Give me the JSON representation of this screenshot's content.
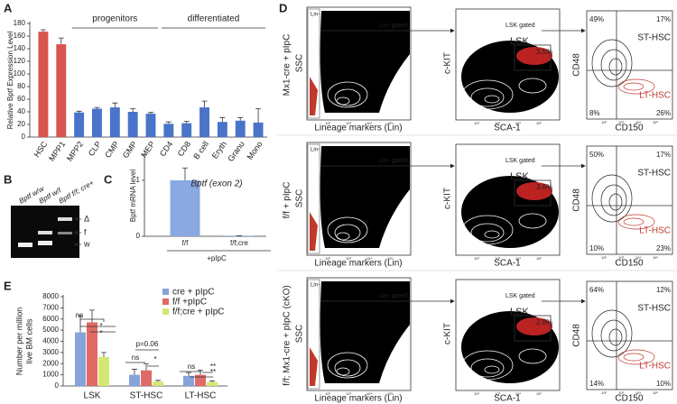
{
  "panel_labels": [
    "A",
    "B",
    "C",
    "D",
    "E"
  ],
  "chart_data": [
    {
      "type": "bar",
      "ylabel": "Relative Bptf Expression Level",
      "categories": [
        "HSC",
        "MPP1",
        "MPP2",
        "CLP",
        "CMP",
        "GMP",
        "MEP",
        "CD4",
        "CD8",
        "B cell",
        "Eryth",
        "Granu",
        "Mono"
      ],
      "values": [
        167,
        147,
        39,
        45,
        47,
        40,
        37,
        21,
        22,
        47,
        24,
        26,
        23
      ],
      "errors": [
        3,
        10,
        2,
        2,
        7,
        5,
        2,
        3,
        3,
        10,
        7,
        5,
        22
      ],
      "colors": [
        "#d9534f",
        "#d9534f",
        "#4a74c9",
        "#4a74c9",
        "#4a74c9",
        "#4a74c9",
        "#4a74c9",
        "#4a74c9",
        "#4a74c9",
        "#4a74c9",
        "#4a74c9",
        "#4a74c9",
        "#4a74c9"
      ],
      "ylim": [
        0,
        180
      ],
      "yticks": [
        0,
        20,
        40,
        60,
        80,
        100,
        120,
        140,
        160,
        180
      ],
      "annotations": [
        "progenitors",
        "differentiated"
      ]
    },
    {
      "type": "bar",
      "title": "Bptf (exon 2)",
      "ylabel": "Bptf mRNA level",
      "xlabel": "+pIpC",
      "categories": [
        "f/f",
        "f/f;cre"
      ],
      "values": [
        1.0,
        0.01
      ],
      "errors": [
        0.22,
        0
      ],
      "colors": [
        "#8aa9e2",
        "#8aa9e2"
      ],
      "ylim": [
        0,
        1.45
      ],
      "yticks": [
        0,
        1
      ]
    },
    {
      "type": "grouped_bar",
      "ylabel": [
        "Number per million",
        "live BM cells"
      ],
      "categories": [
        "LSK",
        "ST-HSC",
        "LT-HSC"
      ],
      "series": [
        {
          "name": "cre + pIpC",
          "color": "#86a3da",
          "values": [
            4800,
            1000,
            900
          ],
          "errors": [
            1500,
            500,
            300
          ]
        },
        {
          "name": "f/f +pIpC",
          "color": "#e06a66",
          "values": [
            5700,
            1400,
            1000
          ],
          "errors": [
            1100,
            600,
            400
          ]
        },
        {
          "name": "f/f;cre + pIpC",
          "color": "#d6e672",
          "values": [
            2600,
            400,
            350
          ],
          "errors": [
            400,
            100,
            100
          ]
        }
      ],
      "ylim": [
        0,
        8000
      ],
      "yticks": [
        0,
        1000,
        2000,
        3000,
        4000,
        5000,
        6000,
        7000,
        8000
      ],
      "legend": "top-right",
      "annotations": [
        "ns",
        "*",
        "*",
        "p=0.06",
        "ns",
        "*",
        "ns",
        "**",
        "**"
      ]
    }
  ],
  "gel": {
    "lanes": [
      "Bptf w/w",
      "Bptf w/f",
      "Bptf f/f; cre+"
    ],
    "bands": [
      "Δ",
      "f",
      "w"
    ]
  },
  "flow": {
    "axes": {
      "ssc": "SSC",
      "lin": "Lineage markers (Lin)",
      "ckit": "c-KIT",
      "sca": "SCA-1",
      "cd48": "CD48",
      "cd150": "CD150"
    },
    "log_ticks": [
      "10²",
      "10³",
      "10⁴",
      "10⁵"
    ],
    "gates": {
      "lin": "Lin-",
      "lin_gated": "Lin- gated",
      "lsk_gated": "LSK gated",
      "lsk": "LSK",
      "st": "ST-HSC",
      "lt": "LT-HSC"
    },
    "rows": [
      {
        "label": "Mx1-cre + pIpC",
        "lsk_pct": "3.5%",
        "quadrants": [
          "49%",
          "17%",
          "8%",
          "26%"
        ]
      },
      {
        "label": "f/f + pIpC",
        "lsk_pct": "3.6%",
        "quadrants": [
          "50%",
          "17%",
          "10%",
          "23%"
        ]
      },
      {
        "label": "f/f; Mx1-cre + pIpC (cKO)",
        "lsk_pct": "2.8%",
        "quadrants": [
          "64%",
          "12%",
          "14%",
          "10%"
        ]
      }
    ]
  }
}
